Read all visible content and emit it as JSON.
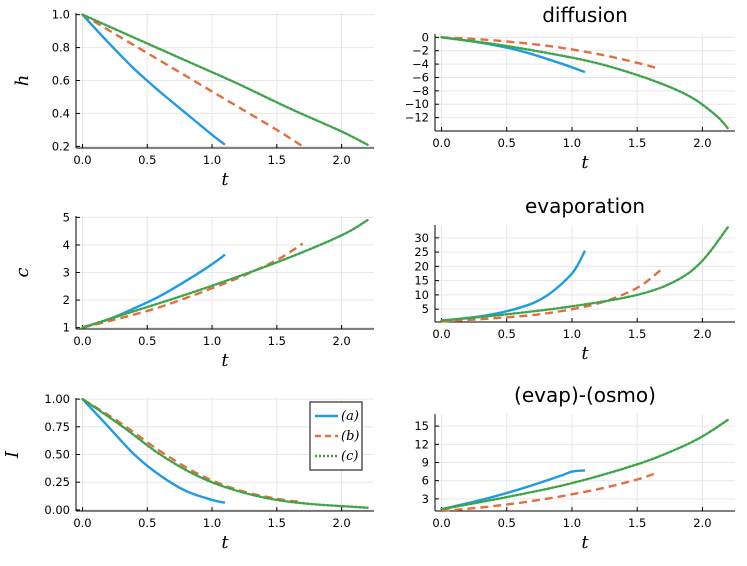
{
  "colors": {
    "a": "#1f9ae5",
    "b": "#e2703f",
    "c": "#3fa447",
    "grid": "#e6e6e6",
    "axis": "#000000"
  },
  "legend": [
    {
      "key": "a",
      "label": "(a)",
      "style": "solid"
    },
    {
      "key": "b",
      "label": "(b)",
      "style": "dash"
    },
    {
      "key": "c",
      "label": "(c)",
      "style": "dot"
    }
  ],
  "chart_data": [
    {
      "id": "h",
      "type": "line",
      "title": "",
      "xlabel": "t",
      "ylabel": "h",
      "xlim": [
        -0.05,
        2.25
      ],
      "ylim": [
        0.19,
        1.01
      ],
      "xticks": [
        0.0,
        0.5,
        1.0,
        1.5,
        2.0
      ],
      "xtick_labels": [
        "0.0",
        "0.5",
        "1.0",
        "1.5",
        "2.0"
      ],
      "yticks": [
        0.2,
        0.4,
        0.6,
        0.8,
        1.0
      ],
      "ytick_labels": [
        "0.2",
        "0.4",
        "0.6",
        "0.8",
        "1.0"
      ],
      "grid": true,
      "series": [
        {
          "name": "(a)",
          "key": "a",
          "x": [
            0,
            0.2,
            0.4,
            0.6,
            0.8,
            1.0,
            1.1
          ],
          "y": [
            1.0,
            0.83,
            0.67,
            0.53,
            0.4,
            0.27,
            0.21
          ]
        },
        {
          "name": "(b)",
          "key": "b",
          "x": [
            0,
            0.3,
            0.6,
            0.9,
            1.2,
            1.5,
            1.7
          ],
          "y": [
            1.0,
            0.86,
            0.72,
            0.58,
            0.44,
            0.3,
            0.2
          ]
        },
        {
          "name": "(c)",
          "key": "c",
          "x": [
            0,
            0.4,
            0.8,
            1.2,
            1.6,
            2.0,
            2.2
          ],
          "y": [
            1.0,
            0.86,
            0.72,
            0.58,
            0.43,
            0.29,
            0.21
          ]
        }
      ]
    },
    {
      "id": "diffusion",
      "type": "line",
      "title": "diffusion",
      "xlabel": "t",
      "ylabel": "",
      "xlim": [
        -0.05,
        2.25
      ],
      "ylim": [
        -14.0,
        0.5
      ],
      "xticks": [
        0.0,
        0.5,
        1.0,
        1.5,
        2.0
      ],
      "xtick_labels": [
        "0.0",
        "0.5",
        "1.0",
        "1.5",
        "2.0"
      ],
      "yticks": [
        0,
        -2,
        -4,
        -6,
        -8,
        -10,
        -12
      ],
      "ytick_labels": [
        "0",
        "−2",
        "−4",
        "−6",
        "−8",
        "−10",
        "−12"
      ],
      "grid": true,
      "series": [
        {
          "name": "(a)",
          "key": "a",
          "x": [
            0,
            0.3,
            0.6,
            0.9,
            1.1
          ],
          "y": [
            0,
            -0.8,
            -2.0,
            -3.8,
            -5.2
          ]
        },
        {
          "name": "(b)",
          "key": "b",
          "x": [
            0,
            0.3,
            0.6,
            0.9,
            1.2,
            1.5,
            1.65
          ],
          "y": [
            0,
            -0.3,
            -0.8,
            -1.5,
            -2.5,
            -3.8,
            -4.6
          ]
        },
        {
          "name": "(c)",
          "key": "c",
          "x": [
            0,
            0.4,
            0.8,
            1.2,
            1.6,
            1.9,
            2.1,
            2.2
          ],
          "y": [
            0,
            -1.0,
            -2.3,
            -3.9,
            -6.3,
            -8.8,
            -11.6,
            -13.7
          ]
        }
      ]
    },
    {
      "id": "c",
      "type": "line",
      "title": "",
      "xlabel": "t",
      "ylabel": "c",
      "xlim": [
        -0.05,
        2.25
      ],
      "ylim": [
        0.95,
        5.05
      ],
      "xticks": [
        0.0,
        0.5,
        1.0,
        1.5,
        2.0
      ],
      "xtick_labels": [
        "0.0",
        "0.5",
        "1.0",
        "1.5",
        "2.0"
      ],
      "yticks": [
        1,
        2,
        3,
        4,
        5
      ],
      "ytick_labels": [
        "1",
        "2",
        "3",
        "4",
        "5"
      ],
      "grid": true,
      "series": [
        {
          "name": "(a)",
          "key": "a",
          "x": [
            0,
            0.2,
            0.4,
            0.6,
            0.8,
            1.0,
            1.1
          ],
          "y": [
            1.0,
            1.3,
            1.7,
            2.15,
            2.7,
            3.3,
            3.65
          ]
        },
        {
          "name": "(b)",
          "key": "b",
          "x": [
            0,
            0.3,
            0.6,
            0.9,
            1.2,
            1.5,
            1.7
          ],
          "y": [
            1.0,
            1.35,
            1.75,
            2.25,
            2.8,
            3.45,
            4.05
          ]
        },
        {
          "name": "(c)",
          "key": "c",
          "x": [
            0,
            0.4,
            0.8,
            1.2,
            1.6,
            2.0,
            2.2
          ],
          "y": [
            1.0,
            1.6,
            2.2,
            2.85,
            3.55,
            4.35,
            4.9
          ]
        }
      ]
    },
    {
      "id": "evaporation",
      "type": "line",
      "title": "evaporation",
      "xlabel": "t",
      "ylabel": "",
      "xlim": [
        -0.05,
        2.25
      ],
      "ylim": [
        0.5,
        34.5
      ],
      "xticks": [
        0.0,
        0.5,
        1.0,
        1.5,
        2.0
      ],
      "xtick_labels": [
        "0.0",
        "0.5",
        "1.0",
        "1.5",
        "2.0"
      ],
      "yticks": [
        5,
        10,
        15,
        20,
        25,
        30
      ],
      "ytick_labels": [
        "5",
        "10",
        "15",
        "20",
        "25",
        "30"
      ],
      "grid": true,
      "series": [
        {
          "name": "(a)",
          "key": "a",
          "x": [
            0,
            0.3,
            0.6,
            0.8,
            1.0,
            1.1
          ],
          "y": [
            1.0,
            2.5,
            5.5,
            9.5,
            17.5,
            25.5
          ]
        },
        {
          "name": "(b)",
          "key": "b",
          "x": [
            0,
            0.4,
            0.8,
            1.2,
            1.5,
            1.7
          ],
          "y": [
            0.7,
            1.8,
            3.5,
            7.0,
            12.5,
            19.5
          ]
        },
        {
          "name": "(c)",
          "key": "c",
          "x": [
            0,
            0.5,
            1.0,
            1.5,
            1.8,
            2.0,
            2.2
          ],
          "y": [
            1.0,
            3.2,
            6.0,
            10.0,
            15.0,
            22.0,
            34.0
          ]
        }
      ]
    },
    {
      "id": "I",
      "type": "line",
      "title": "",
      "xlabel": "t",
      "ylabel": "I",
      "xlim": [
        -0.05,
        2.25
      ],
      "ylim": [
        -0.01,
        1.01
      ],
      "xticks": [
        0.0,
        0.5,
        1.0,
        1.5,
        2.0
      ],
      "xtick_labels": [
        "0.0",
        "0.5",
        "1.0",
        "1.5",
        "2.0"
      ],
      "yticks": [
        0.0,
        0.25,
        0.5,
        0.75,
        1.0
      ],
      "ytick_labels": [
        "0.00",
        "0.25",
        "0.50",
        "0.75",
        "1.00"
      ],
      "grid": true,
      "series": [
        {
          "name": "(a)",
          "key": "a",
          "x": [
            0,
            0.2,
            0.4,
            0.6,
            0.8,
            1.0,
            1.1
          ],
          "y": [
            1.0,
            0.75,
            0.5,
            0.31,
            0.17,
            0.09,
            0.065
          ]
        },
        {
          "name": "(b)",
          "key": "b",
          "x": [
            0,
            0.3,
            0.6,
            0.9,
            1.2,
            1.5,
            1.7
          ],
          "y": [
            1.0,
            0.78,
            0.53,
            0.32,
            0.18,
            0.1,
            0.07
          ]
        },
        {
          "name": "(c)",
          "key": "c",
          "x": [
            0,
            0.3,
            0.6,
            0.9,
            1.2,
            1.5,
            1.8,
            2.2
          ],
          "y": [
            1.0,
            0.76,
            0.5,
            0.3,
            0.17,
            0.09,
            0.05,
            0.02
          ]
        }
      ]
    },
    {
      "id": "evapOsmo",
      "type": "line",
      "title": "(evap)-(osmo)",
      "xlabel": "t",
      "ylabel": "",
      "xlim": [
        -0.05,
        2.25
      ],
      "ylim": [
        1.0,
        17.0
      ],
      "xticks": [
        0.0,
        0.5,
        1.0,
        1.5,
        2.0
      ],
      "xtick_labels": [
        "0.0",
        "0.5",
        "1.0",
        "1.5",
        "2.0"
      ],
      "yticks": [
        3,
        6,
        9,
        12,
        15
      ],
      "ytick_labels": [
        "3",
        "6",
        "9",
        "12",
        "15"
      ],
      "grid": true,
      "series": [
        {
          "name": "(a)",
          "key": "a",
          "x": [
            0,
            0.3,
            0.6,
            0.9,
            1.0,
            1.1
          ],
          "y": [
            1.3,
            2.8,
            4.6,
            6.7,
            7.5,
            7.7
          ]
        },
        {
          "name": "(b)",
          "key": "b",
          "x": [
            0,
            0.4,
            0.8,
            1.2,
            1.5,
            1.65
          ],
          "y": [
            1.0,
            1.8,
            3.0,
            4.6,
            6.2,
            7.3
          ]
        },
        {
          "name": "(c)",
          "key": "c",
          "x": [
            0,
            0.5,
            1.0,
            1.5,
            1.8,
            2.0,
            2.2
          ],
          "y": [
            1.3,
            3.3,
            5.6,
            8.7,
            11.2,
            13.3,
            16.1
          ]
        }
      ]
    }
  ]
}
